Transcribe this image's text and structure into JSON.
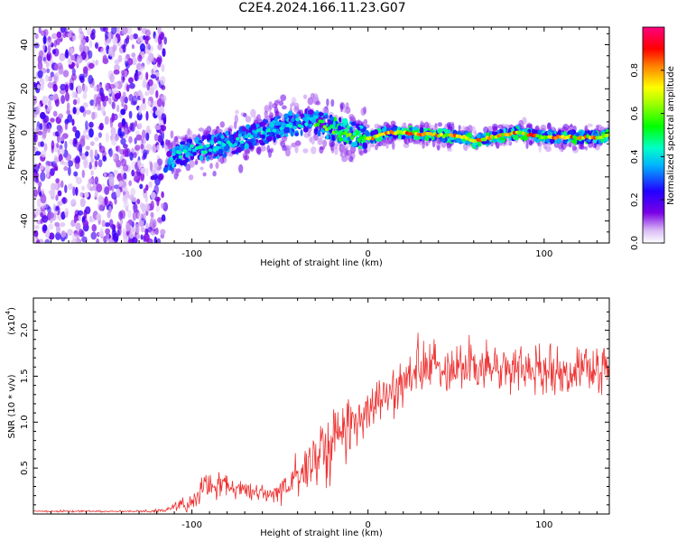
{
  "title": "C2E4.2024.166.11.23.G07",
  "chart_data": [
    {
      "type": "heatmap",
      "name": "spectrogram",
      "xlabel": "Height of straight line (km)",
      "ylabel": "Frequency (Hz)",
      "xlim": [
        -190,
        137
      ],
      "ylim": [
        -50,
        48
      ],
      "xticks": [
        -100,
        0,
        100
      ],
      "xtick_labels": [
        "-100",
        "0",
        "100"
      ],
      "yticks": [
        -40,
        -20,
        0,
        20,
        40
      ],
      "ytick_labels": [
        "-40",
        "-20",
        "0",
        "20",
        "40"
      ],
      "colorbar": {
        "label": "Normalized spectral amplitude",
        "range": [
          0,
          1
        ],
        "ticks": [
          0,
          0.2,
          0.4,
          0.6,
          0.8
        ],
        "tick_labels": [
          "0.0",
          "0.2",
          "0.4",
          "0.6",
          "0.8"
        ],
        "colormap": "rainbow (white-violet-blue-cyan-green-yellow-red-magenta)"
      },
      "frequency_trace": {
        "x": [
          -190,
          -170,
          -150,
          -130,
          -115,
          -100,
          -80,
          -60,
          -45,
          -30,
          -20,
          -10,
          0,
          10,
          25,
          40,
          55,
          60,
          70,
          85,
          100,
          115,
          130,
          137
        ],
        "y": [
          -15,
          -12,
          -10,
          -8,
          -12,
          -8,
          -5,
          0,
          4,
          5,
          2,
          0,
          -3,
          0,
          0,
          -1,
          -2,
          -4,
          -2,
          0,
          -2,
          -2,
          -2,
          -1
        ]
      },
      "noise_region_x": [
        -190,
        -115
      ],
      "grid": false
    },
    {
      "type": "line",
      "name": "snr",
      "xlabel": "Height of straight line (km)",
      "ylabel": "SNR (10 * v/v)",
      "y_multiplier_label": "(x10",
      "y_multiplier_exp": "4",
      "y_multiplier_close": ")",
      "xlim": [
        -190,
        137
      ],
      "ylim": [
        0,
        2.35
      ],
      "xticks": [
        -100,
        0,
        100
      ],
      "xtick_labels": [
        "-100",
        "0",
        "100"
      ],
      "yticks": [
        0.5,
        1.0,
        1.5,
        2.0
      ],
      "ytick_labels": [
        "0.5",
        "1.0",
        "1.5",
        "2.0"
      ],
      "color": "#ee3333",
      "series": [
        {
          "x": [
            -190,
            -160,
            -130,
            -115,
            -105,
            -100,
            -95,
            -90,
            -85,
            -80,
            -75,
            -70,
            -65,
            -60,
            -55,
            -50,
            -45,
            -40,
            -35,
            -30,
            -25,
            -20,
            -15,
            -10,
            -5,
            0,
            5,
            10,
            15,
            20,
            25,
            30,
            35,
            40,
            45,
            50,
            55,
            60,
            70,
            80,
            90,
            100,
            110,
            120,
            130,
            137
          ],
          "y": [
            0.03,
            0.03,
            0.03,
            0.04,
            0.1,
            0.15,
            0.25,
            0.3,
            0.32,
            0.3,
            0.28,
            0.26,
            0.25,
            0.22,
            0.22,
            0.25,
            0.3,
            0.38,
            0.55,
            0.65,
            0.7,
            0.8,
            0.9,
            1.0,
            1.05,
            1.15,
            1.2,
            1.28,
            1.35,
            1.45,
            1.5,
            1.55,
            1.58,
            1.6,
            1.62,
            1.62,
            1.63,
            1.6,
            1.58,
            1.57,
            1.58,
            1.57,
            1.56,
            1.57,
            1.57,
            1.58
          ],
          "noise_amplitude": [
            0.01,
            0.01,
            0.01,
            0.02,
            0.08,
            0.12,
            0.15,
            0.16,
            0.15,
            0.13,
            0.12,
            0.11,
            0.1,
            0.1,
            0.1,
            0.15,
            0.2,
            0.3,
            0.4,
            0.45,
            0.45,
            0.45,
            0.4,
            0.35,
            0.3,
            0.28,
            0.28,
            0.28,
            0.28,
            0.3,
            0.3,
            0.3,
            0.3,
            0.3,
            0.3,
            0.3,
            0.3,
            0.3,
            0.28,
            0.28,
            0.28,
            0.28,
            0.25,
            0.25,
            0.25,
            0.25
          ]
        }
      ]
    }
  ]
}
